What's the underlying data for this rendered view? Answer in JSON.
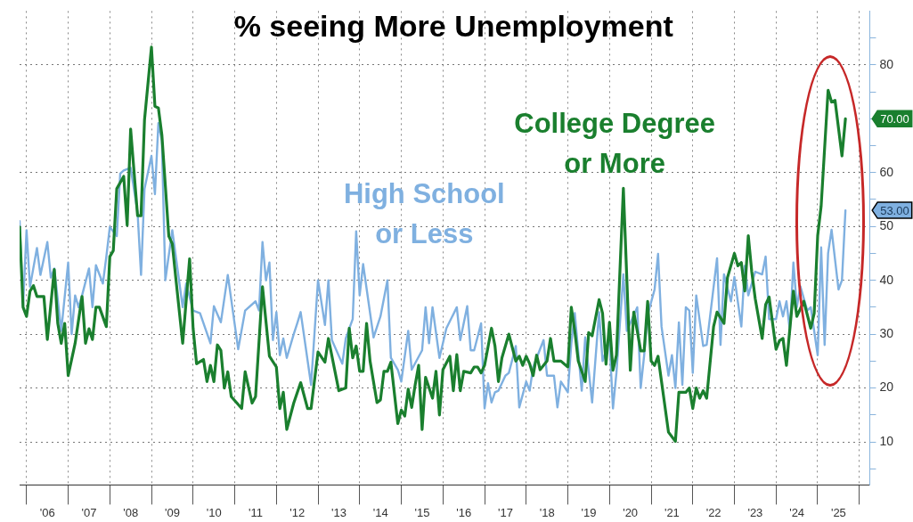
{
  "chart_data": {
    "type": "line",
    "title": "% seeing More Unemployment",
    "xlim": [
      "2005-11",
      "2026-04"
    ],
    "xticks": [
      {
        "value": "2006-01",
        "label": null
      },
      {
        "value": "2006-07",
        "label": "'06"
      },
      {
        "value": "2007-01",
        "label": null
      },
      {
        "value": "2007-07",
        "label": "'07"
      },
      {
        "value": "2008-01",
        "label": null
      },
      {
        "value": "2008-07",
        "label": "'08"
      },
      {
        "value": "2009-01",
        "label": null
      },
      {
        "value": "2009-07",
        "label": "'09"
      },
      {
        "value": "2010-01",
        "label": null
      },
      {
        "value": "2010-07",
        "label": "'10"
      },
      {
        "value": "2011-01",
        "label": null
      },
      {
        "value": "2011-07",
        "label": "'11"
      },
      {
        "value": "2012-01",
        "label": null
      },
      {
        "value": "2012-07",
        "label": "'12"
      },
      {
        "value": "2013-01",
        "label": null
      },
      {
        "value": "2013-07",
        "label": "'13"
      },
      {
        "value": "2014-01",
        "label": null
      },
      {
        "value": "2014-07",
        "label": "'14"
      },
      {
        "value": "2015-01",
        "label": null
      },
      {
        "value": "2015-07",
        "label": "'15"
      },
      {
        "value": "2016-01",
        "label": null
      },
      {
        "value": "2016-07",
        "label": "'16"
      },
      {
        "value": "2017-01",
        "label": null
      },
      {
        "value": "2017-07",
        "label": "'17"
      },
      {
        "value": "2018-01",
        "label": null
      },
      {
        "value": "2018-07",
        "label": "'18"
      },
      {
        "value": "2019-01",
        "label": null
      },
      {
        "value": "2019-07",
        "label": "'19"
      },
      {
        "value": "2020-01",
        "label": null
      },
      {
        "value": "2020-07",
        "label": "'20"
      },
      {
        "value": "2021-01",
        "label": null
      },
      {
        "value": "2021-07",
        "label": "'21"
      },
      {
        "value": "2022-01",
        "label": null
      },
      {
        "value": "2022-07",
        "label": "'22"
      },
      {
        "value": "2023-01",
        "label": null
      },
      {
        "value": "2023-07",
        "label": "'23"
      },
      {
        "value": "2024-01",
        "label": null
      },
      {
        "value": "2024-07",
        "label": "'24"
      },
      {
        "value": "2025-01",
        "label": null
      },
      {
        "value": "2025-07",
        "label": "'25"
      },
      {
        "value": "2026-01",
        "label": null
      }
    ],
    "ylim": [
      2,
      90
    ],
    "yticks": [
      {
        "value": 5,
        "label": null
      },
      10,
      {
        "value": 15,
        "label": null
      },
      20,
      {
        "value": 25,
        "label": null
      },
      30,
      {
        "value": 35,
        "label": null
      },
      40,
      {
        "value": 45,
        "label": null
      },
      50,
      {
        "value": 55,
        "label": null
      },
      60,
      {
        "value": 65,
        "label": null
      },
      {
        "value": 70,
        "label": null
      },
      {
        "value": 75,
        "label": null
      },
      80,
      {
        "value": 85,
        "label": null
      }
    ],
    "grid": true,
    "legend": false,
    "marker": "none",
    "line_style": "solid",
    "series": [
      {
        "name": "College Degree or More",
        "color": "#1a7f2e",
        "x": [
          "2005-11",
          "2005-12",
          "2006-01",
          "2006-02",
          "2006-03",
          "2006-04",
          "2006-06",
          "2006-07",
          "2006-09",
          "2006-10",
          "2006-11",
          "2006-12",
          "2007-01",
          "2007-03",
          "2007-05",
          "2007-06",
          "2007-07",
          "2007-08",
          "2007-09",
          "2007-10",
          "2007-12",
          "2008-01",
          "2008-02",
          "2008-03",
          "2008-05",
          "2008-06",
          "2008-07",
          "2008-09",
          "2008-10",
          "2008-11",
          "2009-01",
          "2009-02",
          "2009-03",
          "2009-04",
          "2009-06",
          "2009-07",
          "2009-08",
          "2009-10",
          "2009-12",
          "2010-01",
          "2010-02",
          "2010-04",
          "2010-05",
          "2010-06",
          "2010-07",
          "2010-08",
          "2010-09",
          "2010-10",
          "2010-11",
          "2010-12",
          "2011-03",
          "2011-04",
          "2011-06",
          "2011-07",
          "2011-09",
          "2011-11",
          "2012-01",
          "2012-02",
          "2012-03",
          "2012-04",
          "2012-06",
          "2012-08",
          "2012-10",
          "2012-11",
          "2013-01",
          "2013-03",
          "2013-04",
          "2013-07",
          "2013-09",
          "2013-10",
          "2013-11",
          "2013-12",
          "2014-01",
          "2014-02",
          "2014-03",
          "2014-04",
          "2014-06",
          "2014-07",
          "2014-08",
          "2014-09",
          "2014-10",
          "2014-12",
          "2015-01",
          "2015-02",
          "2015-03",
          "2015-04",
          "2015-05",
          "2015-06",
          "2015-07",
          "2015-08",
          "2015-10",
          "2015-11",
          "2015-12",
          "2016-01",
          "2016-03",
          "2016-04",
          "2016-05",
          "2016-06",
          "2016-07",
          "2016-09",
          "2016-10",
          "2016-11",
          "2016-12",
          "2017-01",
          "2017-03",
          "2017-04",
          "2017-05",
          "2017-06",
          "2017-08",
          "2017-10",
          "2017-11",
          "2017-12",
          "2018-01",
          "2018-02",
          "2018-03",
          "2018-04",
          "2018-05",
          "2018-07",
          "2018-08",
          "2018-09",
          "2018-11",
          "2019-01",
          "2019-02",
          "2019-03",
          "2019-04",
          "2019-06",
          "2019-07",
          "2019-08",
          "2019-10",
          "2019-11",
          "2019-12",
          "2020-01",
          "2020-02",
          "2020-03",
          "2020-05",
          "2020-07",
          "2020-08",
          "2020-09",
          "2020-10",
          "2020-11",
          "2020-12",
          "2021-01",
          "2021-02",
          "2021-03",
          "2021-06",
          "2021-08",
          "2021-09",
          "2021-11",
          "2021-12",
          "2022-01",
          "2022-02",
          "2022-03",
          "2022-04",
          "2022-05",
          "2022-07",
          "2022-08",
          "2022-10",
          "2022-11",
          "2023-01",
          "2023-02",
          "2023-03",
          "2023-04",
          "2023-05",
          "2023-06",
          "2023-07",
          "2023-09",
          "2023-10",
          "2023-11",
          "2024-01",
          "2024-02",
          "2024-03",
          "2024-04",
          "2024-06",
          "2024-07",
          "2024-09",
          "2024-11",
          "2024-12",
          "2025-01",
          "2025-02",
          "2025-04",
          "2025-05",
          "2025-06",
          "2025-08",
          "2025-09"
        ],
        "values": [
          49.9,
          35,
          33.3,
          38,
          39,
          37,
          37,
          29,
          42,
          32,
          28.3,
          32,
          22.3,
          28.3,
          37,
          28.3,
          31,
          29,
          35,
          35,
          31.4,
          44.4,
          45.5,
          57,
          59.3,
          50.2,
          68.1,
          52,
          52,
          69.8,
          83.3,
          72.3,
          72,
          67,
          48.2,
          46.8,
          40.5,
          28.3,
          44,
          31.1,
          24.5,
          25.3,
          21.2,
          24.2,
          21.2,
          28,
          27,
          20,
          23,
          18.4,
          16.2,
          23,
          17.2,
          18.4,
          38.8,
          25.9,
          23.9,
          16.2,
          19.2,
          12.3,
          17.2,
          21,
          16.2,
          16.2,
          26.7,
          24.8,
          29.2,
          19.5,
          20,
          31.1,
          25.6,
          27.8,
          23.1,
          23.1,
          32,
          25,
          17.3,
          17.8,
          23.1,
          23.1,
          24.8,
          13.4,
          15.9,
          14.8,
          19.8,
          16.4,
          20.6,
          24.2,
          12.3,
          22,
          18.1,
          23.1,
          15,
          23.4,
          25.9,
          19.5,
          26.2,
          19.5,
          23.1,
          22.8,
          23.9,
          23.9,
          22.8,
          24.2,
          31.1,
          27.8,
          21.2,
          25.6,
          30,
          25,
          25.9,
          24.2,
          25.9,
          24.5,
          22.3,
          26.1,
          23.4,
          25,
          29.2,
          25,
          25,
          23.9,
          35,
          30.6,
          25,
          21.2,
          30.3,
          29.7,
          36.4,
          33.9,
          24.4,
          32.2,
          23.3,
          26.1,
          57.1,
          23.3,
          34.1,
          30.6,
          26.9,
          26.9,
          36.1,
          25,
          24.2,
          25.9,
          11.8,
          10.1,
          19.2,
          19.2,
          20,
          16.2,
          20,
          18.1,
          19.5,
          18.1,
          31.4,
          34.1,
          32,
          40.5,
          45,
          42.7,
          43.3,
          38,
          48.3,
          41.6,
          36.6,
          29.2,
          35.5,
          36.9,
          27.2,
          28.8,
          29.2,
          24.2,
          38,
          33.3,
          36.1,
          31.1,
          33.9,
          48.3,
          53.8,
          75.3,
          73.1,
          73.4,
          63.1,
          70
        ]
      },
      {
        "name": "High School or Less",
        "color": "#7fb0e0",
        "x": [
          "2005-11",
          "2005-12",
          "2006-01",
          "2006-02",
          "2006-04",
          "2006-05",
          "2006-07",
          "2006-08",
          "2006-09",
          "2006-11",
          "2007-01",
          "2007-02",
          "2007-03",
          "2007-04",
          "2007-05",
          "2007-07",
          "2007-08",
          "2007-09",
          "2007-11",
          "2007-12",
          "2008-01",
          "2008-03",
          "2008-04",
          "2008-05",
          "2008-07",
          "2008-09",
          "2008-10",
          "2008-11",
          "2009-01",
          "2009-02",
          "2009-03",
          "2009-04",
          "2009-05",
          "2009-07",
          "2009-10",
          "2009-11",
          "2010-01",
          "2010-03",
          "2010-06",
          "2010-07",
          "2010-09",
          "2010-11",
          "2011-02",
          "2011-04",
          "2011-07",
          "2011-08",
          "2011-09",
          "2011-10",
          "2011-11",
          "2011-12",
          "2012-01",
          "2012-02",
          "2012-03",
          "2012-04",
          "2012-06",
          "2012-07",
          "2012-08",
          "2012-11",
          "2013-01",
          "2013-03",
          "2013-04",
          "2013-05",
          "2013-08",
          "2013-09",
          "2013-11",
          "2013-12",
          "2014-01",
          "2014-02",
          "2014-05",
          "2014-07",
          "2014-09",
          "2014-10",
          "2014-12",
          "2015-01",
          "2015-03",
          "2015-04",
          "2015-07",
          "2015-08",
          "2015-09",
          "2015-10",
          "2015-12",
          "2016-02",
          "2016-05",
          "2016-06",
          "2016-08",
          "2016-09",
          "2016-10",
          "2016-12",
          "2017-01",
          "2017-02",
          "2017-03",
          "2017-04",
          "2017-05",
          "2017-07",
          "2017-08",
          "2017-10",
          "2017-11",
          "2018-01",
          "2018-02",
          "2018-03",
          "2018-06",
          "2018-07",
          "2018-09",
          "2018-10",
          "2018-11",
          "2019-01",
          "2019-02",
          "2019-03",
          "2019-05",
          "2019-06",
          "2019-08",
          "2019-10",
          "2019-11",
          "2020-01",
          "2020-02",
          "2020-03",
          "2020-05",
          "2020-06",
          "2020-09",
          "2020-10",
          "2020-11",
          "2020-12",
          "2021-02",
          "2021-03",
          "2021-04",
          "2021-06",
          "2021-07",
          "2021-08",
          "2021-09",
          "2021-10",
          "2021-11",
          "2021-12",
          "2022-01",
          "2022-02",
          "2022-04",
          "2022-05",
          "2022-08",
          "2022-09",
          "2022-10",
          "2022-12",
          "2023-01",
          "2023-03",
          "2023-04",
          "2023-05",
          "2023-07",
          "2023-09",
          "2023-10",
          "2023-11",
          "2024-01",
          "2024-02",
          "2024-03",
          "2024-04",
          "2024-05",
          "2024-06",
          "2024-07",
          "2024-08",
          "2024-10",
          "2024-11",
          "2025-01",
          "2025-02",
          "2025-03",
          "2025-04",
          "2025-05",
          "2025-07",
          "2025-08",
          "2025-09"
        ],
        "values": [
          51,
          35.2,
          49.3,
          38.8,
          46,
          41,
          47.1,
          40.5,
          42.2,
          30.6,
          43.3,
          30,
          37.2,
          35,
          37.2,
          42.2,
          35,
          42.8,
          39.4,
          44.4,
          49.9,
          48.2,
          59.8,
          60.4,
          60.9,
          52.6,
          41,
          57,
          63.1,
          56,
          69.2,
          65.9,
          40,
          49.3,
          35,
          39.4,
          34.4,
          33.9,
          28.3,
          35.2,
          32.2,
          41,
          27.2,
          34.4,
          36.1,
          34.4,
          47.1,
          40,
          43.3,
          28.9,
          34.1,
          26.1,
          29.2,
          25.6,
          30,
          32,
          34.1,
          20.6,
          40,
          31.7,
          40,
          28.9,
          24.5,
          29.2,
          32.8,
          49.1,
          37.2,
          43,
          29.4,
          33.3,
          40,
          25.6,
          23.4,
          21.2,
          30.6,
          23.4,
          27,
          35,
          28.3,
          35,
          25.6,
          31.1,
          35,
          28.9,
          35.2,
          27,
          27,
          32,
          16.2,
          20.9,
          17.3,
          19.2,
          19.5,
          22.3,
          22.8,
          27.8,
          16.4,
          21.2,
          19.5,
          23.9,
          28.9,
          22.3,
          22.3,
          16.4,
          21.2,
          19.2,
          28.3,
          33.9,
          19.5,
          29.4,
          17.3,
          34.1,
          25,
          28.9,
          16.2,
          22.8,
          41.1,
          30.6,
          35,
          20,
          26.1,
          33.6,
          38.3,
          44.9,
          31.4,
          22.3,
          26.1,
          20,
          32.2,
          20.6,
          35,
          34.4,
          22.8,
          37.2,
          27.8,
          28,
          44.1,
          28,
          41.1,
          36.1,
          40.6,
          31.4,
          42.7,
          37.2,
          41.6,
          41.1,
          44.4,
          32.8,
          32.8,
          36.1,
          33.3,
          36.1,
          30.6,
          43.3,
          35,
          38.9,
          34.4,
          35,
          26.1,
          46.1,
          28,
          45,
          49.4,
          38.3,
          40,
          53
        ]
      }
    ],
    "annotations": [
      {
        "text": "70.00",
        "x": "2025-09",
        "y": 70
      },
      {
        "text": "53.00",
        "x": "2025-09",
        "y": 53
      }
    ]
  }
}
